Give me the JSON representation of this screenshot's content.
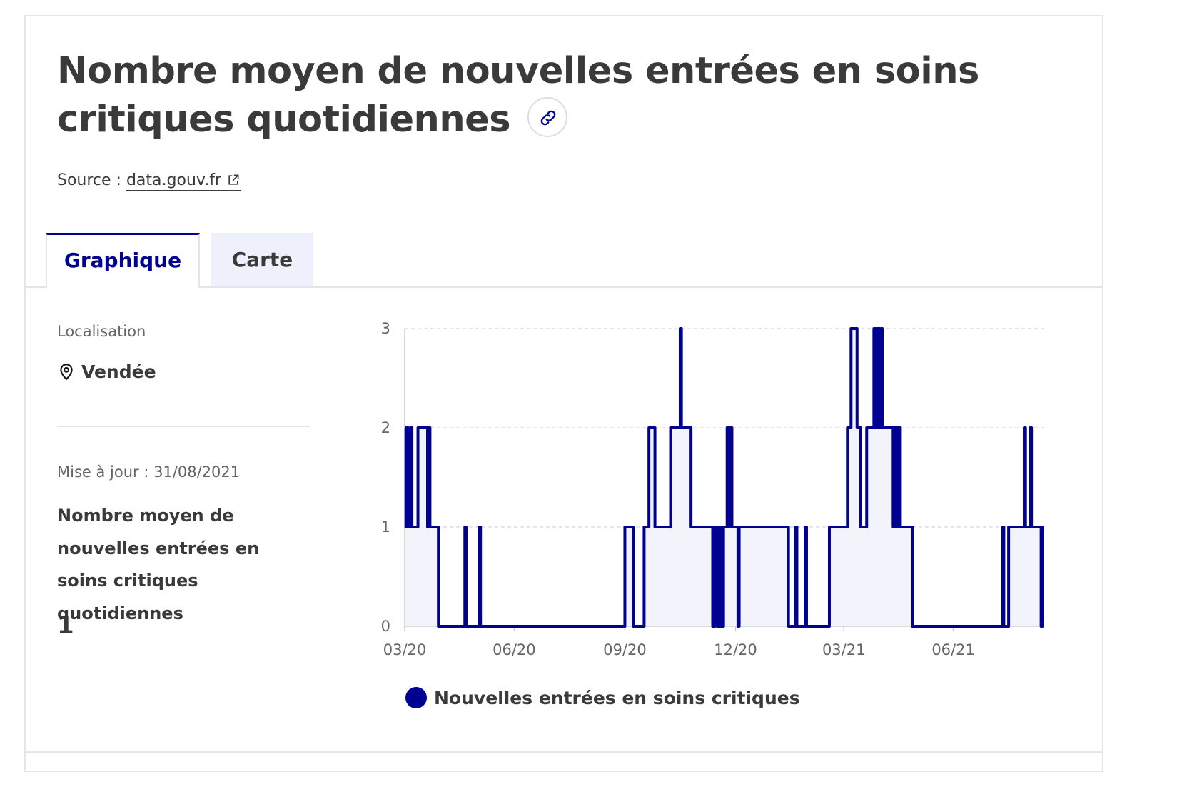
{
  "header": {
    "title": "Nombre moyen de nouvelles entrées en soins critiques quotidiennes",
    "source_prefix": "Source : ",
    "source_link": "data.gouv.fr"
  },
  "tabs": [
    {
      "label": "Graphique",
      "active": true
    },
    {
      "label": "Carte",
      "active": false
    }
  ],
  "side": {
    "location_label": "Localisation",
    "location_value": "Vendée",
    "update": "Mise à jour : 31/08/2021",
    "metric_title": "Nombre moyen de nouvelles entrées en soins critiques quotidiennes",
    "metric_value": "1"
  },
  "legend": {
    "label": "Nouvelles entrées en soins critiques"
  },
  "colors": {
    "accent": "#000091",
    "fill": "#f3f3fc",
    "grid": "#d6d6d6"
  },
  "chart_data": {
    "type": "area",
    "series": [
      {
        "name": "Nouvelles entrées en soins critiques",
        "points": [
          [
            "2020-03-18",
            2
          ],
          [
            "2020-03-19",
            1
          ],
          [
            "2020-03-20",
            2
          ],
          [
            "2020-03-21",
            1
          ],
          [
            "2020-03-22",
            1
          ],
          [
            "2020-03-23",
            2
          ],
          [
            "2020-03-24",
            1
          ],
          [
            "2020-03-28",
            1
          ],
          [
            "2020-03-29",
            2
          ],
          [
            "2020-04-05",
            2
          ],
          [
            "2020-04-06",
            1
          ],
          [
            "2020-04-07",
            2
          ],
          [
            "2020-04-08",
            1
          ],
          [
            "2020-04-14",
            1
          ],
          [
            "2020-04-15",
            0
          ],
          [
            "2020-05-06",
            0
          ],
          [
            "2020-05-07",
            1
          ],
          [
            "2020-05-08",
            0
          ],
          [
            "2020-05-18",
            0
          ],
          [
            "2020-05-19",
            1
          ],
          [
            "2020-05-20",
            0
          ],
          [
            "2020-09-15",
            0
          ],
          [
            "2020-09-17",
            1
          ],
          [
            "2020-09-23",
            1
          ],
          [
            "2020-09-24",
            0
          ],
          [
            "2020-10-02",
            0
          ],
          [
            "2020-10-03",
            1
          ],
          [
            "2020-10-06",
            1
          ],
          [
            "2020-10-07",
            2
          ],
          [
            "2020-10-11",
            2
          ],
          [
            "2020-10-12",
            1
          ],
          [
            "2020-10-24",
            1
          ],
          [
            "2020-10-25",
            2
          ],
          [
            "2020-11-01",
            2
          ],
          [
            "2020-11-02",
            3
          ],
          [
            "2020-11-03",
            2
          ],
          [
            "2020-11-10",
            2
          ],
          [
            "2020-11-11",
            1
          ],
          [
            "2020-11-28",
            1
          ],
          [
            "2020-11-29",
            0
          ],
          [
            "2020-12-01",
            1
          ],
          [
            "2020-12-03",
            0
          ],
          [
            "2020-12-05",
            1
          ],
          [
            "2020-12-06",
            0
          ],
          [
            "2020-12-08",
            1
          ],
          [
            "2020-12-11",
            2
          ],
          [
            "2020-12-12",
            1
          ],
          [
            "2020-12-13",
            2
          ],
          [
            "2020-12-15",
            1
          ],
          [
            "2020-12-19",
            1
          ],
          [
            "2020-12-20",
            0
          ],
          [
            "2020-12-21",
            1
          ],
          [
            "2021-01-30",
            1
          ],
          [
            "2021-01-31",
            0
          ],
          [
            "2021-02-05",
            0
          ],
          [
            "2021-02-06",
            1
          ],
          [
            "2021-02-07",
            0
          ],
          [
            "2021-02-13",
            0
          ],
          [
            "2021-02-14",
            1
          ],
          [
            "2021-02-15",
            0
          ],
          [
            "2021-03-05",
            0
          ],
          [
            "2021-03-06",
            1
          ],
          [
            "2021-03-20",
            1
          ],
          [
            "2021-03-21",
            2
          ],
          [
            "2021-03-23",
            2
          ],
          [
            "2021-03-24",
            3
          ],
          [
            "2021-03-28",
            3
          ],
          [
            "2021-03-29",
            2
          ],
          [
            "2021-03-31",
            2
          ],
          [
            "2021-04-01",
            1
          ],
          [
            "2021-04-05",
            1
          ],
          [
            "2021-04-06",
            2
          ],
          [
            "2021-04-11",
            2
          ],
          [
            "2021-04-12",
            3
          ],
          [
            "2021-04-13",
            2
          ],
          [
            "2021-04-14",
            3
          ],
          [
            "2021-04-15",
            2
          ],
          [
            "2021-04-16",
            3
          ],
          [
            "2021-04-17",
            2
          ],
          [
            "2021-04-18",
            3
          ],
          [
            "2021-04-19",
            2
          ],
          [
            "2021-04-27",
            2
          ],
          [
            "2021-04-28",
            1
          ],
          [
            "2021-04-29",
            2
          ],
          [
            "2021-04-30",
            1
          ],
          [
            "2021-05-01",
            2
          ],
          [
            "2021-05-02",
            1
          ],
          [
            "2021-05-03",
            2
          ],
          [
            "2021-05-04",
            1
          ],
          [
            "2021-05-13",
            1
          ],
          [
            "2021-05-14",
            0
          ],
          [
            "2021-07-27",
            0
          ],
          [
            "2021-07-28",
            1
          ],
          [
            "2021-07-29",
            0
          ],
          [
            "2021-08-01",
            0
          ],
          [
            "2021-08-02",
            1
          ],
          [
            "2021-08-14",
            1
          ],
          [
            "2021-08-15",
            2
          ],
          [
            "2021-08-16",
            1
          ],
          [
            "2021-08-19",
            1
          ],
          [
            "2021-08-20",
            2
          ],
          [
            "2021-08-21",
            1
          ],
          [
            "2021-08-28",
            1
          ],
          [
            "2021-08-29",
            0
          ],
          [
            "2021-08-30",
            1
          ],
          [
            "2021-08-31",
            1
          ]
        ]
      }
    ],
    "xlim": [
      "2020-03-18",
      "2021-08-31"
    ],
    "x_ticks": [
      {
        "date": "2020-03-18",
        "label": "03/20"
      },
      {
        "date": "2020-06-17",
        "label": "06/20"
      },
      {
        "date": "2020-09-17",
        "label": "09/20"
      },
      {
        "date": "2020-12-18",
        "label": "12/20"
      },
      {
        "date": "2021-03-18",
        "label": "03/21"
      },
      {
        "date": "2021-06-17",
        "label": "06/21"
      }
    ],
    "ylim": [
      0,
      3
    ],
    "y_ticks": [
      0,
      1,
      2,
      3
    ],
    "grid": "horizontal dashed"
  }
}
